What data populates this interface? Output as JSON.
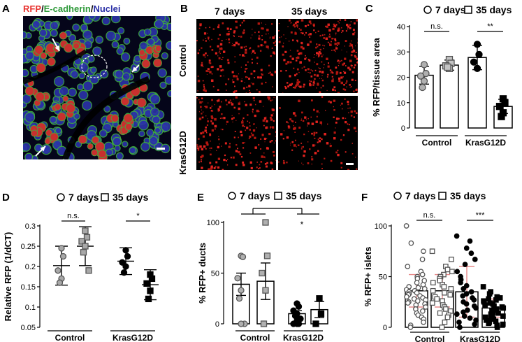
{
  "panels": {
    "A": {
      "letter": "A",
      "title": {
        "red": "RFP",
        "sep1": "/",
        "green": "E-cadherin",
        "sep2": "/",
        "blue": "Nuclei"
      },
      "colors": {
        "red": "#e8332f",
        "green": "#2f9a3a",
        "blue": "#2a2fa6"
      }
    },
    "B": {
      "letter": "B",
      "col_labels": [
        "7 days",
        "35 days"
      ],
      "row_labels": [
        "Control",
        "KrasG12D"
      ]
    },
    "C": {
      "letter": "C"
    },
    "D": {
      "letter": "D"
    },
    "E": {
      "letter": "E"
    },
    "F": {
      "letter": "F"
    }
  },
  "chart_data": [
    {
      "panel": "C",
      "type": "bar",
      "ylabel": "% RFP/tissue area",
      "ylim": [
        0,
        40
      ],
      "yticks": [
        0,
        10,
        20,
        30,
        40
      ],
      "groups": [
        "Control",
        "KrasG12D"
      ],
      "legend": [
        "7 days",
        "35 days"
      ],
      "bars": [
        {
          "group": "Control",
          "series": "7 days",
          "mean": 20.8,
          "sd": 3.5,
          "marker": "circle",
          "fill": "#b0b0b0",
          "points": [
            25.0,
            21.5,
            20.5,
            18.5,
            16.0
          ]
        },
        {
          "group": "Control",
          "series": "35 days",
          "mean": 24.8,
          "sd": 2.0,
          "marker": "square",
          "fill": "#c4c4c4",
          "points": [
            27.0,
            25.5,
            24.5,
            23.5,
            24.0
          ]
        },
        {
          "group": "KrasG12D",
          "series": "7 days",
          "mean": 27.8,
          "sd": 4.8,
          "marker": "circle",
          "fill": "#000000",
          "points": [
            33.0,
            29.0,
            26.0,
            23.5
          ]
        },
        {
          "group": "KrasG12D",
          "series": "35 days",
          "mean": 8.5,
          "sd": 2.8,
          "marker": "square",
          "fill": "#000000",
          "points": [
            11.5,
            10.0,
            8.5,
            6.0,
            4.5
          ]
        }
      ],
      "significance": [
        {
          "group": "Control",
          "label": "n.s."
        },
        {
          "group": "KrasG12D",
          "label": "**"
        }
      ]
    },
    {
      "panel": "D",
      "type": "scatter",
      "ylabel": "Relative RFP (1/dCT)",
      "ylim": [
        0.05,
        0.3
      ],
      "yticks": [
        0.05,
        0.1,
        0.15,
        0.2,
        0.25,
        0.3
      ],
      "groups": [
        "Control",
        "KrasG12D"
      ],
      "legend": [
        "7 days",
        "35 days"
      ],
      "bars": [
        {
          "group": "Control",
          "series": "7 days",
          "mean": 0.202,
          "sd": 0.048,
          "marker": "circle",
          "fill": "#a8a8a8",
          "points": [
            0.245,
            0.225,
            0.19,
            0.17,
            0.16
          ]
        },
        {
          "group": "Control",
          "series": "35 days",
          "mean": 0.25,
          "sd": 0.048,
          "marker": "square",
          "fill": "#a8a8a8",
          "points": [
            0.288,
            0.272,
            0.262,
            0.25,
            0.235,
            0.19
          ]
        },
        {
          "group": "KrasG12D",
          "series": "7 days",
          "mean": 0.213,
          "sd": 0.033,
          "marker": "circle",
          "fill": "#000000",
          "points": [
            0.24,
            0.225,
            0.21,
            0.2,
            0.185
          ]
        },
        {
          "group": "KrasG12D",
          "series": "35 days",
          "mean": 0.155,
          "sd": 0.037,
          "marker": "square",
          "fill": "#000000",
          "points": [
            0.18,
            0.17,
            0.158,
            0.14,
            0.12
          ]
        }
      ],
      "significance": [
        {
          "group": "Control",
          "label": "n.s."
        },
        {
          "group": "KrasG12D",
          "label": "*"
        }
      ]
    },
    {
      "panel": "E",
      "type": "bar",
      "ylabel": "% RFP+ ducts",
      "ylim": [
        0,
        100
      ],
      "yticks": [
        0,
        50,
        100
      ],
      "groups": [
        "Control",
        "KrasG12D"
      ],
      "legend": [
        "7 days",
        "35 days"
      ],
      "bars": [
        {
          "group": "Control",
          "series": "7 days",
          "mean": 39,
          "sem": 11,
          "marker": "circle",
          "fill": "#b0b0b0",
          "points": [
            67,
            66,
            45,
            33,
            25,
            0,
            0
          ]
        },
        {
          "group": "Control",
          "series": "35 days",
          "mean": 42,
          "sem": 18,
          "marker": "square",
          "fill": "#b0b0b0",
          "points": [
            100,
            67,
            50,
            33,
            0
          ]
        },
        {
          "group": "KrasG12D",
          "series": "7 days",
          "mean": 10,
          "sem": 3,
          "marker": "circle",
          "fill": "#000000",
          "points": [
            20,
            17,
            13,
            10,
            8,
            5,
            3,
            0,
            0,
            0
          ]
        },
        {
          "group": "KrasG12D",
          "series": "35 days",
          "mean": 14,
          "sem": 8,
          "marker": "square",
          "fill": "#000000",
          "points": [
            25,
            10,
            0
          ]
        }
      ],
      "significance": [
        {
          "group": "all",
          "label": "*"
        }
      ]
    },
    {
      "panel": "F",
      "type": "bar",
      "ylabel": "% RFP+ islets",
      "ylim": [
        0,
        100
      ],
      "yticks": [
        0,
        50,
        100
      ],
      "groups": [
        "Control",
        "KrasG12D"
      ],
      "legend": [
        "7 days",
        "35 days"
      ],
      "bars": [
        {
          "group": "Control",
          "series": "7 days",
          "mean": 36,
          "sd": 16,
          "marker": "circle",
          "fill": "#ffffff",
          "points": [
            100,
            83,
            75,
            67,
            60,
            55,
            52,
            50,
            48,
            46,
            44,
            42,
            40,
            39,
            38,
            37,
            36,
            35,
            34,
            33,
            32,
            31,
            30,
            29,
            28,
            27,
            26,
            25,
            24,
            23,
            22,
            20,
            18,
            16,
            14,
            12,
            10,
            8,
            5,
            2,
            0
          ]
        },
        {
          "group": "Control",
          "series": "35 days",
          "mean": 36,
          "sd": 16,
          "marker": "square",
          "fill": "#ffffff",
          "points": [
            75,
            67,
            60,
            57,
            55,
            52,
            50,
            48,
            46,
            44,
            42,
            40,
            38,
            36,
            34,
            32,
            30,
            28,
            26,
            24,
            22,
            20,
            18,
            16,
            14,
            12,
            10,
            5,
            0
          ]
        },
        {
          "group": "KrasG12D",
          "series": "7 days",
          "mean": 35,
          "sd": 25,
          "marker": "circle",
          "fill": "#000000",
          "points": [
            90,
            85,
            78,
            73,
            67,
            62,
            55,
            50,
            47,
            44,
            41,
            38,
            35,
            33,
            31,
            29,
            27,
            25,
            23,
            21,
            19,
            17,
            15,
            13,
            11,
            9,
            7,
            5,
            3,
            0
          ]
        },
        {
          "group": "KrasG12D",
          "series": "35 days",
          "mean": 19,
          "sd": 9,
          "marker": "square",
          "fill": "#000000",
          "points": [
            40,
            35,
            33,
            30,
            29,
            28,
            27,
            26,
            25,
            24,
            23,
            22,
            21,
            20,
            19,
            18,
            17,
            16,
            15,
            14,
            13,
            12,
            11,
            10,
            9,
            8,
            7,
            6,
            5,
            4,
            3,
            2,
            0
          ]
        }
      ],
      "significance": [
        {
          "group": "Control",
          "label": "n.s."
        },
        {
          "group": "KrasG12D",
          "label": "***"
        }
      ]
    }
  ]
}
